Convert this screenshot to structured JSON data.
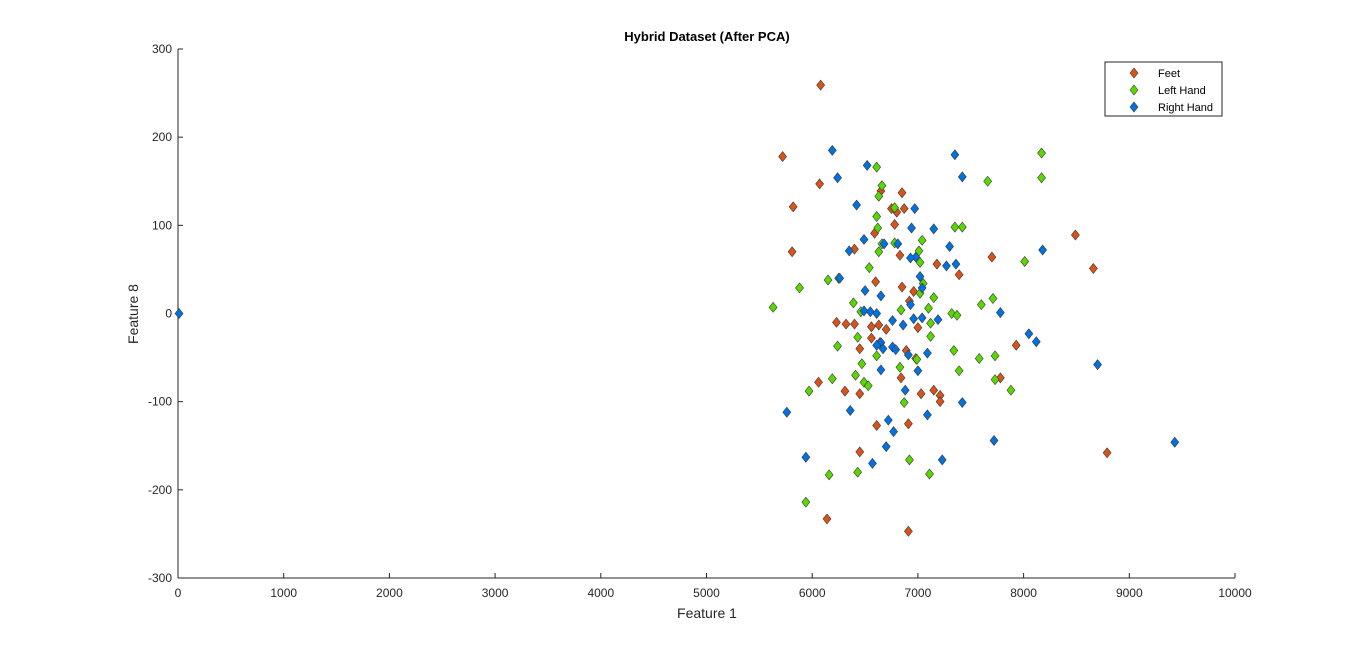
{
  "chart_data": {
    "type": "scatter",
    "title": "Hybrid Dataset (After PCA)",
    "xlabel": "Feature 1",
    "ylabel": "Feature 8",
    "xlim": [
      0,
      10000
    ],
    "ylim": [
      -300,
      300
    ],
    "xticks": [
      "0",
      "1000",
      "2000",
      "3000",
      "4000",
      "5000",
      "6000",
      "7000",
      "8000",
      "9000",
      "10000"
    ],
    "yticks": [
      "300",
      "200",
      "100",
      "0",
      "-100",
      "-200",
      "-300"
    ],
    "grid": false,
    "legend_position": "top-right",
    "marker": "diamond",
    "series": [
      {
        "name": "Feet",
        "color": "#D95319",
        "points": [
          [
            6080,
            259
          ],
          [
            5720,
            178
          ],
          [
            6070,
            147
          ],
          [
            5820,
            121
          ],
          [
            6650,
            139
          ],
          [
            6850,
            137
          ],
          [
            6750,
            119
          ],
          [
            6870,
            119
          ],
          [
            6800,
            115
          ],
          [
            6780,
            101
          ],
          [
            6590,
            91
          ],
          [
            6400,
            73
          ],
          [
            5810,
            70
          ],
          [
            6830,
            66
          ],
          [
            7180,
            56
          ],
          [
            7390,
            44
          ],
          [
            7700,
            64
          ],
          [
            8490,
            89
          ],
          [
            8660,
            51
          ],
          [
            6600,
            36
          ],
          [
            6850,
            30
          ],
          [
            6960,
            25
          ],
          [
            6920,
            14
          ],
          [
            6230,
            -10
          ],
          [
            6320,
            -12
          ],
          [
            6400,
            -12
          ],
          [
            6560,
            -15
          ],
          [
            6630,
            -13
          ],
          [
            6700,
            -18
          ],
          [
            7000,
            -16
          ],
          [
            6560,
            -28
          ],
          [
            6640,
            -33
          ],
          [
            6450,
            -40
          ],
          [
            6890,
            -42
          ],
          [
            6980,
            -51
          ],
          [
            7930,
            -36
          ],
          [
            6060,
            -78
          ],
          [
            6840,
            -73
          ],
          [
            7780,
            -73
          ],
          [
            6310,
            -88
          ],
          [
            6450,
            -91
          ],
          [
            7030,
            -91
          ],
          [
            7150,
            -87
          ],
          [
            7210,
            -93
          ],
          [
            7210,
            -100
          ],
          [
            6610,
            -127
          ],
          [
            6910,
            -125
          ],
          [
            6450,
            -157
          ],
          [
            8790,
            -158
          ],
          [
            6140,
            -233
          ],
          [
            6910,
            -247
          ]
        ]
      },
      {
        "name": "Left Hand",
        "color": "#57D900",
        "points": [
          [
            6610,
            166
          ],
          [
            8170,
            182
          ],
          [
            8170,
            154
          ],
          [
            7660,
            150
          ],
          [
            6660,
            145
          ],
          [
            6630,
            133
          ],
          [
            6780,
            120
          ],
          [
            6620,
            97
          ],
          [
            6610,
            110
          ],
          [
            7350,
            98
          ],
          [
            7420,
            98
          ],
          [
            7040,
            83
          ],
          [
            6660,
            79
          ],
          [
            6780,
            80
          ],
          [
            7010,
            71
          ],
          [
            6630,
            70
          ],
          [
            7020,
            58
          ],
          [
            6540,
            52
          ],
          [
            8010,
            59
          ],
          [
            6250,
            40
          ],
          [
            6150,
            38
          ],
          [
            7050,
            34
          ],
          [
            7020,
            23
          ],
          [
            5880,
            29
          ],
          [
            7710,
            17
          ],
          [
            7600,
            10
          ],
          [
            6390,
            12
          ],
          [
            5630,
            7
          ],
          [
            6460,
            2
          ],
          [
            7150,
            18
          ],
          [
            7100,
            6
          ],
          [
            6840,
            4
          ],
          [
            7320,
            0
          ],
          [
            7370,
            -2
          ],
          [
            7120,
            -11
          ],
          [
            7120,
            -26
          ],
          [
            6430,
            -27
          ],
          [
            6240,
            -37
          ],
          [
            7340,
            -42
          ],
          [
            6990,
            -52
          ],
          [
            6610,
            -48
          ],
          [
            7580,
            -51
          ],
          [
            7730,
            -48
          ],
          [
            6470,
            -57
          ],
          [
            7390,
            -65
          ],
          [
            6410,
            -70
          ],
          [
            6830,
            -61
          ],
          [
            6190,
            -74
          ],
          [
            6490,
            -78
          ],
          [
            6530,
            -82
          ],
          [
            7730,
            -75
          ],
          [
            5970,
            -88
          ],
          [
            7880,
            -87
          ],
          [
            6870,
            -101
          ],
          [
            6160,
            -183
          ],
          [
            6920,
            -166
          ],
          [
            6430,
            -180
          ],
          [
            7110,
            -182
          ],
          [
            5940,
            -214
          ]
        ]
      },
      {
        "name": "Right Hand",
        "color": "#0072E0",
        "points": [
          [
            10,
            0
          ],
          [
            6190,
            185
          ],
          [
            6520,
            168
          ],
          [
            7350,
            180
          ],
          [
            6240,
            154
          ],
          [
            7420,
            155
          ],
          [
            6420,
            123
          ],
          [
            6970,
            119
          ],
          [
            7150,
            96
          ],
          [
            6940,
            97
          ],
          [
            6490,
            84
          ],
          [
            6680,
            79
          ],
          [
            6810,
            79
          ],
          [
            7300,
            76
          ],
          [
            6350,
            71
          ],
          [
            8180,
            72
          ],
          [
            6980,
            64
          ],
          [
            6930,
            63
          ],
          [
            7360,
            56
          ],
          [
            7270,
            54
          ],
          [
            7020,
            42
          ],
          [
            6260,
            40
          ],
          [
            7040,
            29
          ],
          [
            6500,
            26
          ],
          [
            6650,
            20
          ],
          [
            6930,
            10
          ],
          [
            6490,
            3
          ],
          [
            6550,
            2
          ],
          [
            6610,
            0
          ],
          [
            7780,
            1
          ],
          [
            7040,
            -5
          ],
          [
            6760,
            -8
          ],
          [
            6860,
            -13
          ],
          [
            6960,
            -6
          ],
          [
            7190,
            -7
          ],
          [
            6650,
            -33
          ],
          [
            6610,
            -36
          ],
          [
            6670,
            -40
          ],
          [
            6760,
            -38
          ],
          [
            6790,
            -41
          ],
          [
            6910,
            -47
          ],
          [
            7090,
            -45
          ],
          [
            8050,
            -23
          ],
          [
            8120,
            -32
          ],
          [
            8700,
            -58
          ],
          [
            6650,
            -64
          ],
          [
            7000,
            -65
          ],
          [
            6880,
            -87
          ],
          [
            5760,
            -112
          ],
          [
            6360,
            -110
          ],
          [
            7420,
            -101
          ],
          [
            7090,
            -115
          ],
          [
            6720,
            -121
          ],
          [
            6770,
            -134
          ],
          [
            7720,
            -144
          ],
          [
            9430,
            -146
          ],
          [
            5940,
            -163
          ],
          [
            6700,
            -151
          ],
          [
            6570,
            -170
          ],
          [
            7230,
            -166
          ]
        ]
      }
    ]
  }
}
